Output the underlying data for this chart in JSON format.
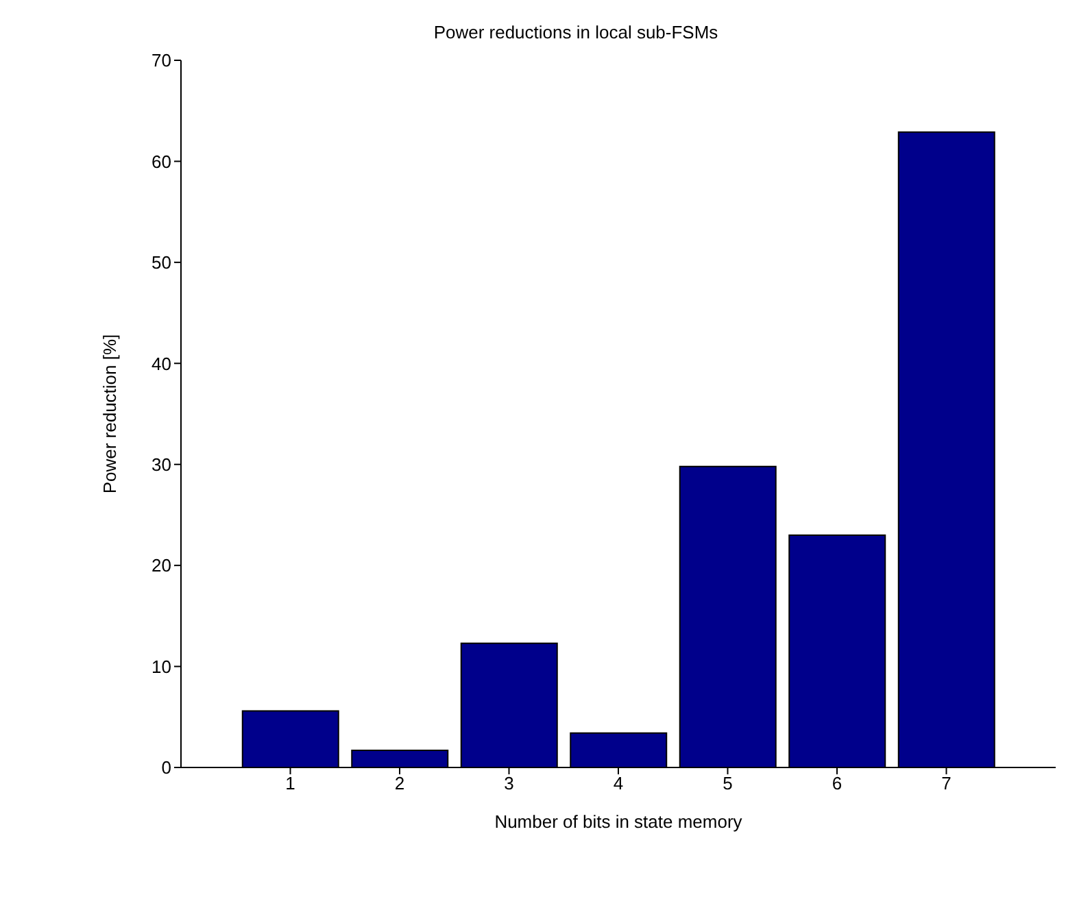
{
  "chart_data": {
    "type": "bar",
    "title": "Power reductions in local sub-FSMs",
    "xlabel": "Number of bits in state memory",
    "ylabel": "Power reduction [%]",
    "x": [
      1,
      2,
      3,
      4,
      5,
      6,
      7
    ],
    "values": [
      5.6,
      1.7,
      12.3,
      3.4,
      29.8,
      23.0,
      62.9
    ],
    "color": "#00008b",
    "xlim": [
      0,
      8
    ],
    "xticks": [
      1,
      2,
      3,
      4,
      5,
      6,
      7
    ],
    "ylim": [
      0,
      70
    ],
    "yticks": [
      0,
      10,
      20,
      30,
      40,
      50,
      60,
      70
    ],
    "grid": false
  }
}
